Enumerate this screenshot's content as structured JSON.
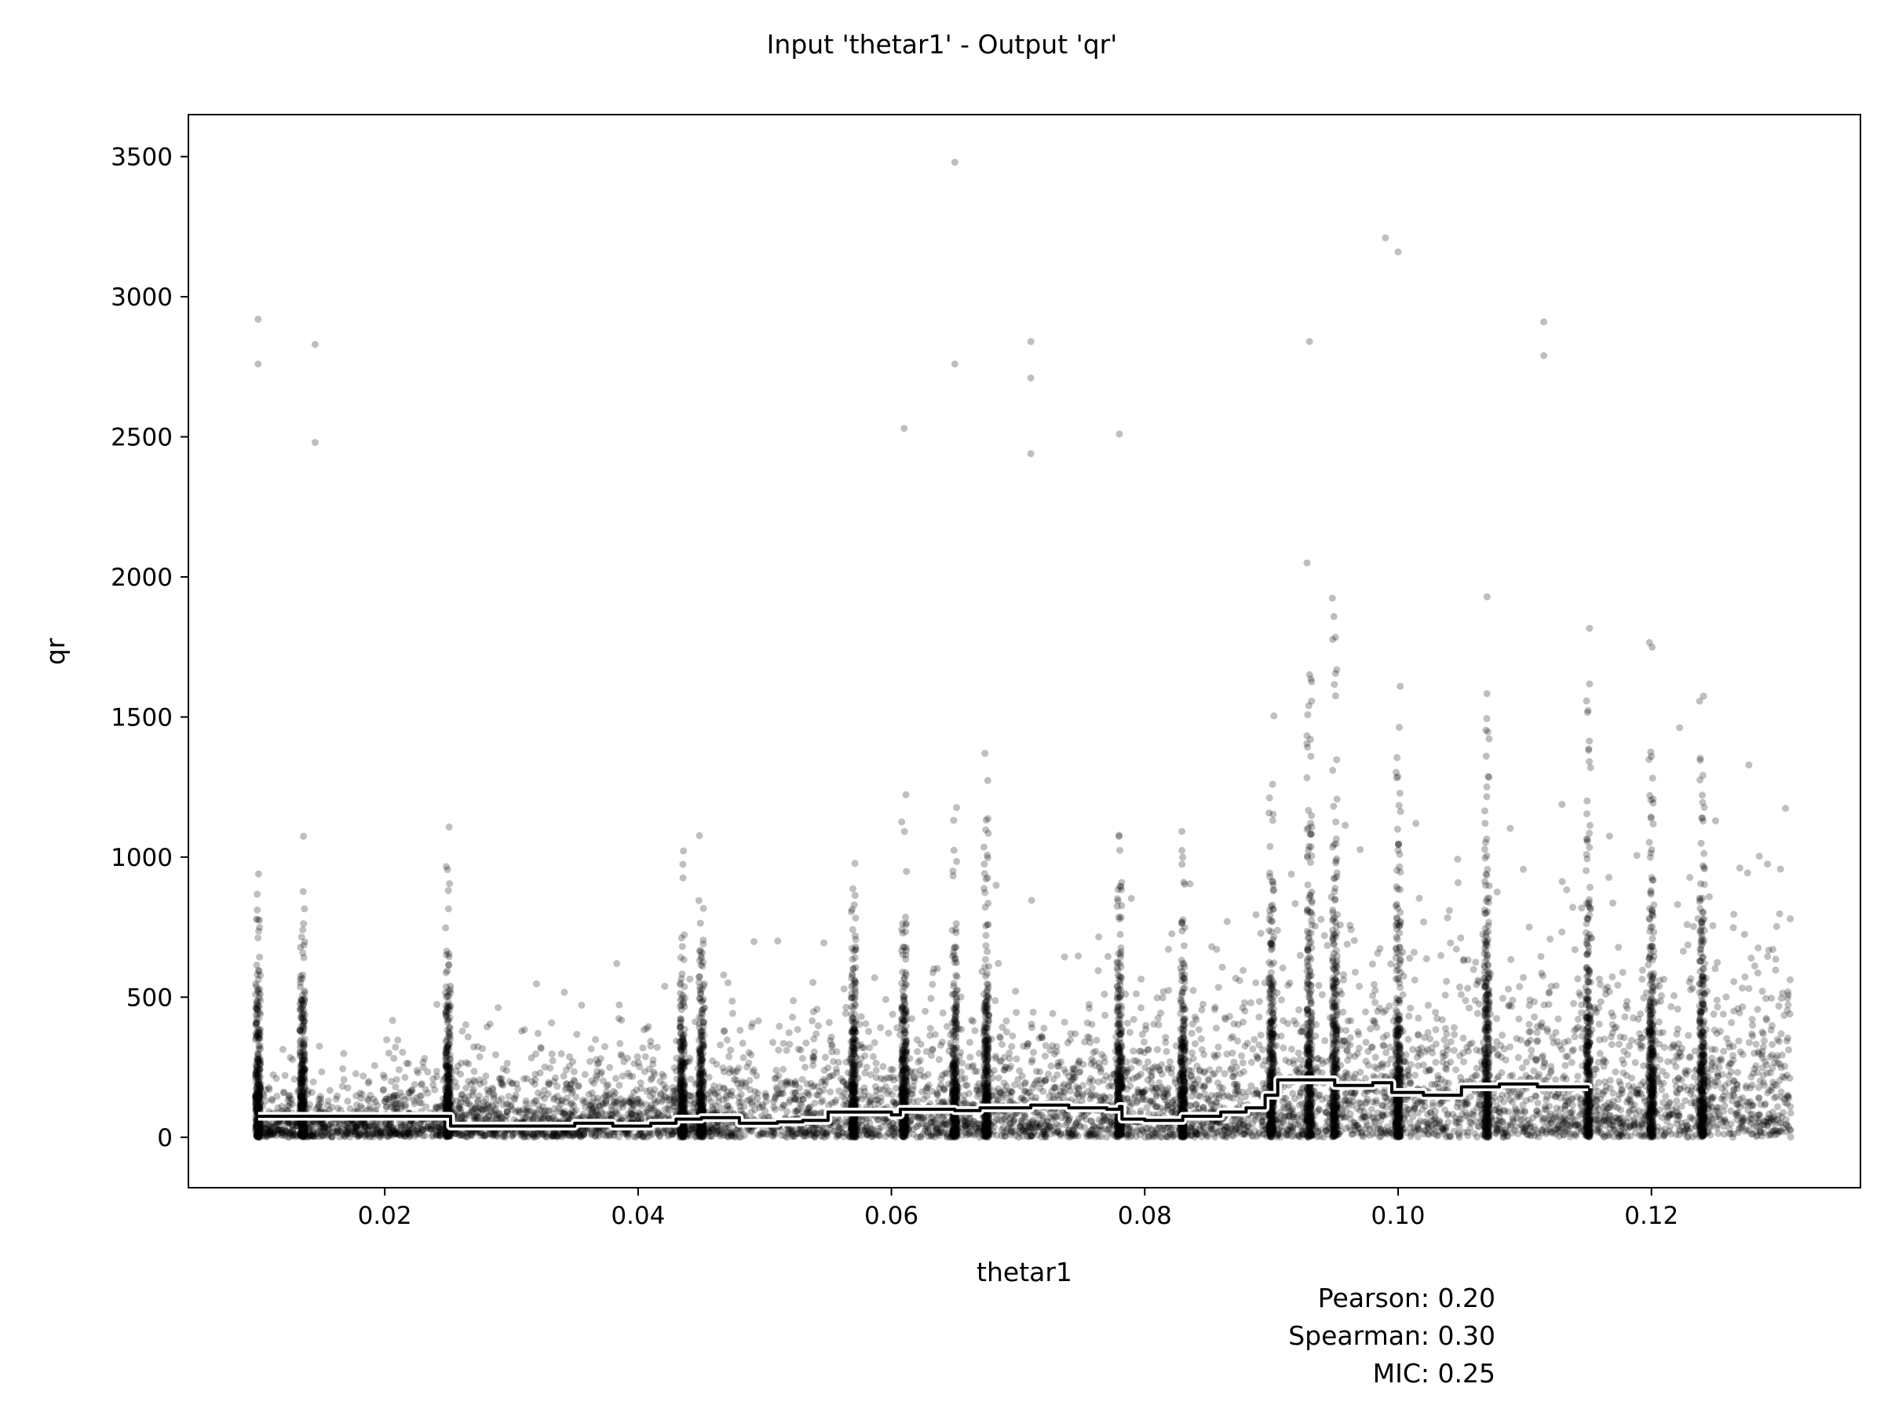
{
  "chart_data": {
    "type": "scatter",
    "title": "Input 'thetar1' - Output 'qr'",
    "xlabel": "thetar1",
    "ylabel": "qr",
    "xlim": [
      0.0045,
      0.1365
    ],
    "ylim": [
      -180,
      3650
    ],
    "xticks": [
      0.02,
      0.04,
      0.06,
      0.08,
      0.1,
      0.12
    ],
    "xtick_labels": [
      "0.02",
      "0.04",
      "0.06",
      "0.08",
      "0.10",
      "0.12"
    ],
    "yticks": [
      0,
      500,
      1000,
      1500,
      2000,
      2500,
      3000,
      3500
    ],
    "ytick_labels": [
      "0",
      "500",
      "1000",
      "1500",
      "2000",
      "2500",
      "3000",
      "3500"
    ],
    "grid": false,
    "colors": {
      "points": "#000000",
      "trend_line": "#000000",
      "trend_halo": "#ffffff"
    },
    "series": [
      {
        "kind": "points",
        "x_range": [
          0.01,
          0.131
        ],
        "dense_columns_x": [
          0.01,
          0.0135,
          0.025,
          0.0435,
          0.045,
          0.057,
          0.061,
          0.065,
          0.0675,
          0.078,
          0.083,
          0.09,
          0.093,
          0.095,
          0.1,
          0.107,
          0.115,
          0.12,
          0.124
        ],
        "notable_outliers": [
          {
            "x": 0.01,
            "y": 2920
          },
          {
            "x": 0.01,
            "y": 2760
          },
          {
            "x": 0.0145,
            "y": 2830
          },
          {
            "x": 0.0145,
            "y": 2480
          },
          {
            "x": 0.065,
            "y": 3480
          },
          {
            "x": 0.065,
            "y": 2760
          },
          {
            "x": 0.071,
            "y": 2840
          },
          {
            "x": 0.071,
            "y": 2710
          },
          {
            "x": 0.071,
            "y": 2440
          },
          {
            "x": 0.078,
            "y": 2510
          },
          {
            "x": 0.093,
            "y": 2840
          },
          {
            "x": 0.099,
            "y": 3210
          },
          {
            "x": 0.1,
            "y": 3160
          },
          {
            "x": 0.1115,
            "y": 2910
          },
          {
            "x": 0.1115,
            "y": 2790
          },
          {
            "x": 0.061,
            "y": 2530
          }
        ]
      },
      {
        "kind": "trend",
        "points": [
          [
            0.01,
            75
          ],
          [
            0.025,
            75
          ],
          [
            0.0252,
            40
          ],
          [
            0.03,
            40
          ],
          [
            0.035,
            50
          ],
          [
            0.038,
            40
          ],
          [
            0.041,
            50
          ],
          [
            0.043,
            65
          ],
          [
            0.045,
            70
          ],
          [
            0.048,
            50
          ],
          [
            0.051,
            55
          ],
          [
            0.053,
            60
          ],
          [
            0.055,
            90
          ],
          [
            0.058,
            90
          ],
          [
            0.06,
            80
          ],
          [
            0.0607,
            100
          ],
          [
            0.065,
            95
          ],
          [
            0.067,
            105
          ],
          [
            0.071,
            115
          ],
          [
            0.074,
            105
          ],
          [
            0.077,
            100
          ],
          [
            0.078,
            110
          ],
          [
            0.0782,
            65
          ],
          [
            0.08,
            60
          ],
          [
            0.083,
            75
          ],
          [
            0.086,
            90
          ],
          [
            0.088,
            105
          ],
          [
            0.0895,
            150
          ],
          [
            0.0905,
            205
          ],
          [
            0.093,
            205
          ],
          [
            0.095,
            185
          ],
          [
            0.098,
            195
          ],
          [
            0.0995,
            160
          ],
          [
            0.102,
            150
          ],
          [
            0.105,
            180
          ],
          [
            0.108,
            190
          ],
          [
            0.111,
            180
          ],
          [
            0.115,
            175
          ]
        ]
      }
    ],
    "annotations": {
      "pearson": "Pearson: 0.20",
      "spearman": "Spearman: 0.30",
      "mic": "MIC: 0.25"
    }
  }
}
